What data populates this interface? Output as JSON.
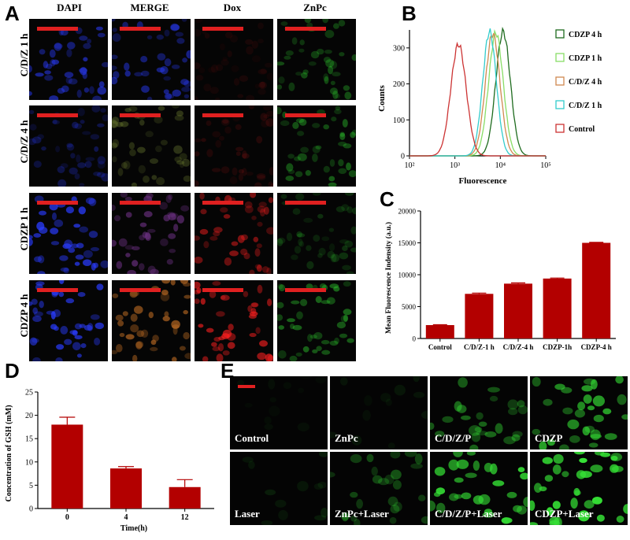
{
  "panels": {
    "a": {
      "letter": "A"
    },
    "b": {
      "letter": "B"
    },
    "c": {
      "letter": "C"
    },
    "d": {
      "letter": "D"
    },
    "e": {
      "letter": "E"
    }
  },
  "panel_a": {
    "columns": [
      "DAPI",
      "MERGE",
      "Dox",
      "ZnPc"
    ],
    "rows": [
      "C/D/Z 1 h",
      "C/D/Z 4 h",
      "CDZP 1 h",
      "CDZP 4 h"
    ]
  },
  "panel_e": {
    "captions": [
      "Control",
      "ZnPc",
      "C/D/Z/P",
      "CDZP",
      "Laser",
      "ZnPc+Laser",
      "C/D/Z/P+Laser",
      "CDZP+Laser"
    ]
  },
  "colors": {
    "bar": "#b30000",
    "scale_bar": "#e02020",
    "dapi": "#2a3cff",
    "dox": "#ff2020",
    "znpc": "#30d030"
  },
  "chart_data": [
    {
      "type": "line",
      "xlabel": "Fluorescence",
      "ylabel": "Counts",
      "xscale": "log",
      "xlim": [
        100,
        100000
      ],
      "ylim": [
        0,
        350
      ],
      "xticks": [
        "10²",
        "10³",
        "10⁴",
        "10⁵"
      ],
      "yticks": [
        0,
        100,
        200,
        300
      ],
      "legend": "right",
      "series": [
        {
          "name": "CDZP 4 h",
          "color": "#1e6b1e",
          "peak_x": 11500,
          "peak_y": 345,
          "width": 0.16
        },
        {
          "name": "CDZP 1 h",
          "color": "#88dd66",
          "peak_x": 8000,
          "peak_y": 342,
          "width": 0.16
        },
        {
          "name": "C/D/Z 4 h",
          "color": "#d08850",
          "peak_x": 6800,
          "peak_y": 340,
          "width": 0.16
        },
        {
          "name": "C/D/Z 1 h",
          "color": "#33cccc",
          "peak_x": 5800,
          "peak_y": 345,
          "width": 0.15
        },
        {
          "name": "Control",
          "color": "#cc3333",
          "peak_x": 1200,
          "peak_y": 310,
          "width": 0.17
        }
      ]
    },
    {
      "type": "bar",
      "ylabel": "Mean Fluorescence Indensity (a.u.)",
      "categories": [
        "Control",
        "C/D/Z-1 h",
        "C/D/Z-4 h",
        "CDZP-1h",
        "CDZP-4 h"
      ],
      "values": [
        2100,
        7000,
        8600,
        9400,
        15000
      ],
      "errors": [
        60,
        120,
        120,
        80,
        80
      ],
      "ylim": [
        0,
        20000
      ],
      "yticks": [
        0,
        5000,
        10000,
        15000,
        20000
      ]
    },
    {
      "type": "bar",
      "xlabel": "Time(h)",
      "ylabel": "Concentration of GSH (mM)",
      "categories": [
        "0",
        "4",
        "12"
      ],
      "values": [
        18,
        8.6,
        4.6
      ],
      "errors": [
        1.6,
        0.4,
        1.6
      ],
      "ylim": [
        0,
        25
      ],
      "yticks": [
        0,
        5,
        10,
        15,
        20,
        25
      ]
    }
  ]
}
